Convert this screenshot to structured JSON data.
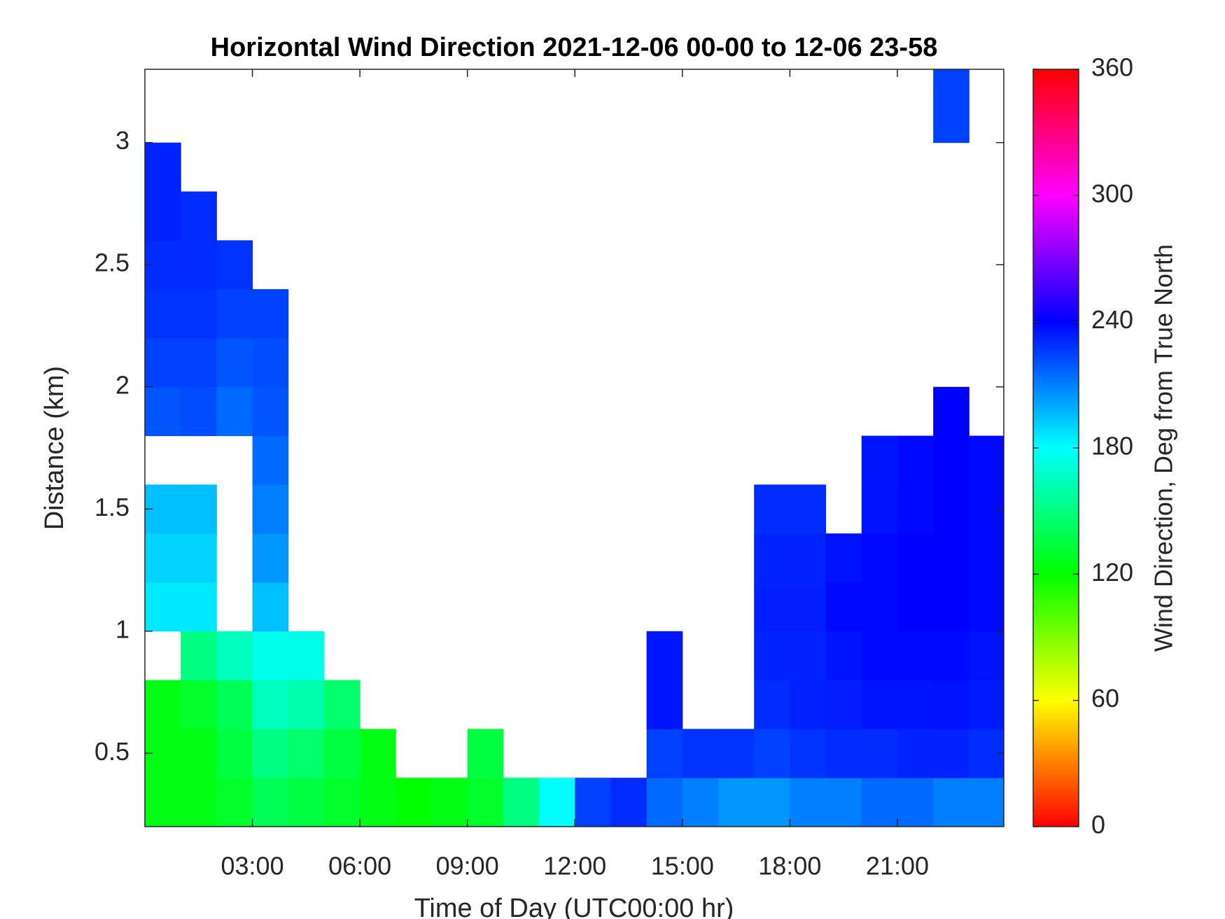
{
  "chart_data": {
    "type": "heatmap",
    "title": "Horizontal Wind Direction 2021-12-06 00-00 to 12-06 23-58",
    "x_label": "Time of Day (UTC00:00 hr)",
    "y_label": "Distance (km)",
    "xlim": [
      0,
      23.97
    ],
    "ylim": [
      0.2,
      3.3
    ],
    "xticks": [
      {
        "value": 3,
        "label": "03:00"
      },
      {
        "value": 6,
        "label": "06:00"
      },
      {
        "value": 9,
        "label": "09:00"
      },
      {
        "value": 12,
        "label": "12:00"
      },
      {
        "value": 15,
        "label": "15:00"
      },
      {
        "value": 18,
        "label": "18:00"
      },
      {
        "value": 21,
        "label": "21:00"
      }
    ],
    "yticks": [
      0.5,
      1,
      1.5,
      2,
      2.5,
      3
    ],
    "xbins": [
      0,
      1,
      2,
      3,
      4,
      5,
      6,
      7,
      8,
      9,
      10,
      11,
      12,
      13,
      14,
      15,
      16,
      17,
      18,
      19,
      20,
      21,
      22,
      23,
      24
    ],
    "ybins": [
      0.2,
      0.4,
      0.6,
      0.8,
      1.0,
      1.2,
      1.4,
      1.6,
      1.8,
      2.0,
      2.2,
      2.4,
      2.6,
      2.8,
      3.0,
      3.2,
      3.4
    ],
    "z": [
      [
        125,
        125,
        130,
        140,
        135,
        130,
        125,
        120,
        125,
        130,
        150,
        180,
        225,
        230,
        215,
        210,
        205,
        205,
        210,
        210,
        215,
        215,
        210,
        210
      ],
      [
        125,
        125,
        135,
        150,
        145,
        135,
        125,
        null,
        null,
        135,
        null,
        null,
        null,
        null,
        225,
        228,
        228,
        225,
        228,
        230,
        230,
        232,
        232,
        230
      ],
      [
        125,
        130,
        140,
        165,
        160,
        145,
        null,
        null,
        null,
        null,
        null,
        null,
        null,
        null,
        235,
        null,
        null,
        230,
        232,
        233,
        235,
        235,
        236,
        234
      ],
      [
        null,
        150,
        165,
        175,
        175,
        null,
        null,
        null,
        null,
        null,
        null,
        null,
        null,
        null,
        235,
        null,
        null,
        232,
        232,
        235,
        238,
        238,
        238,
        236
      ],
      [
        185,
        185,
        null,
        195,
        null,
        null,
        null,
        null,
        null,
        null,
        null,
        null,
        null,
        null,
        null,
        null,
        null,
        233,
        233,
        238,
        238,
        240,
        240,
        238
      ],
      [
        190,
        190,
        null,
        205,
        null,
        null,
        null,
        null,
        null,
        null,
        null,
        null,
        null,
        null,
        null,
        null,
        null,
        232,
        232,
        236,
        238,
        240,
        240,
        238
      ],
      [
        195,
        195,
        null,
        210,
        null,
        null,
        null,
        null,
        null,
        null,
        null,
        null,
        null,
        null,
        null,
        null,
        null,
        230,
        230,
        null,
        236,
        238,
        240,
        238
      ],
      [
        null,
        null,
        null,
        215,
        null,
        null,
        null,
        null,
        null,
        null,
        null,
        null,
        null,
        null,
        null,
        null,
        null,
        null,
        null,
        null,
        235,
        238,
        240,
        238
      ],
      [
        220,
        222,
        215,
        220,
        null,
        null,
        null,
        null,
        null,
        null,
        null,
        null,
        null,
        null,
        null,
        null,
        null,
        null,
        null,
        null,
        null,
        null,
        240,
        null
      ],
      [
        225,
        225,
        220,
        222,
        null,
        null,
        null,
        null,
        null,
        null,
        null,
        null,
        null,
        null,
        null,
        null,
        null,
        null,
        null,
        null,
        null,
        null,
        null,
        null
      ],
      [
        228,
        228,
        225,
        225,
        null,
        null,
        null,
        null,
        null,
        null,
        null,
        null,
        null,
        null,
        null,
        null,
        null,
        null,
        null,
        null,
        null,
        null,
        null,
        null
      ],
      [
        230,
        230,
        228,
        null,
        null,
        null,
        null,
        null,
        null,
        null,
        null,
        null,
        null,
        null,
        null,
        null,
        null,
        null,
        null,
        null,
        null,
        null,
        null,
        null
      ],
      [
        232,
        230,
        null,
        null,
        null,
        null,
        null,
        null,
        null,
        null,
        null,
        null,
        null,
        null,
        null,
        null,
        null,
        null,
        null,
        null,
        null,
        null,
        null,
        null
      ],
      [
        232,
        null,
        null,
        null,
        null,
        null,
        null,
        null,
        null,
        null,
        null,
        null,
        null,
        null,
        null,
        null,
        null,
        null,
        null,
        null,
        null,
        null,
        null,
        null
      ],
      [
        null,
        null,
        null,
        null,
        null,
        null,
        null,
        null,
        null,
        null,
        null,
        null,
        null,
        null,
        null,
        null,
        null,
        null,
        null,
        null,
        null,
        null,
        225,
        null
      ],
      [
        null,
        null,
        null,
        null,
        null,
        null,
        null,
        null,
        null,
        null,
        null,
        null,
        null,
        null,
        null,
        null,
        null,
        null,
        null,
        null,
        null,
        null,
        225,
        null
      ]
    ],
    "colorbar": {
      "label": "Wind Direction, Deg from True North",
      "lim": [
        0,
        360
      ],
      "ticks": [
        0,
        60,
        120,
        180,
        240,
        300,
        360
      ],
      "colormap": "hsv"
    }
  }
}
